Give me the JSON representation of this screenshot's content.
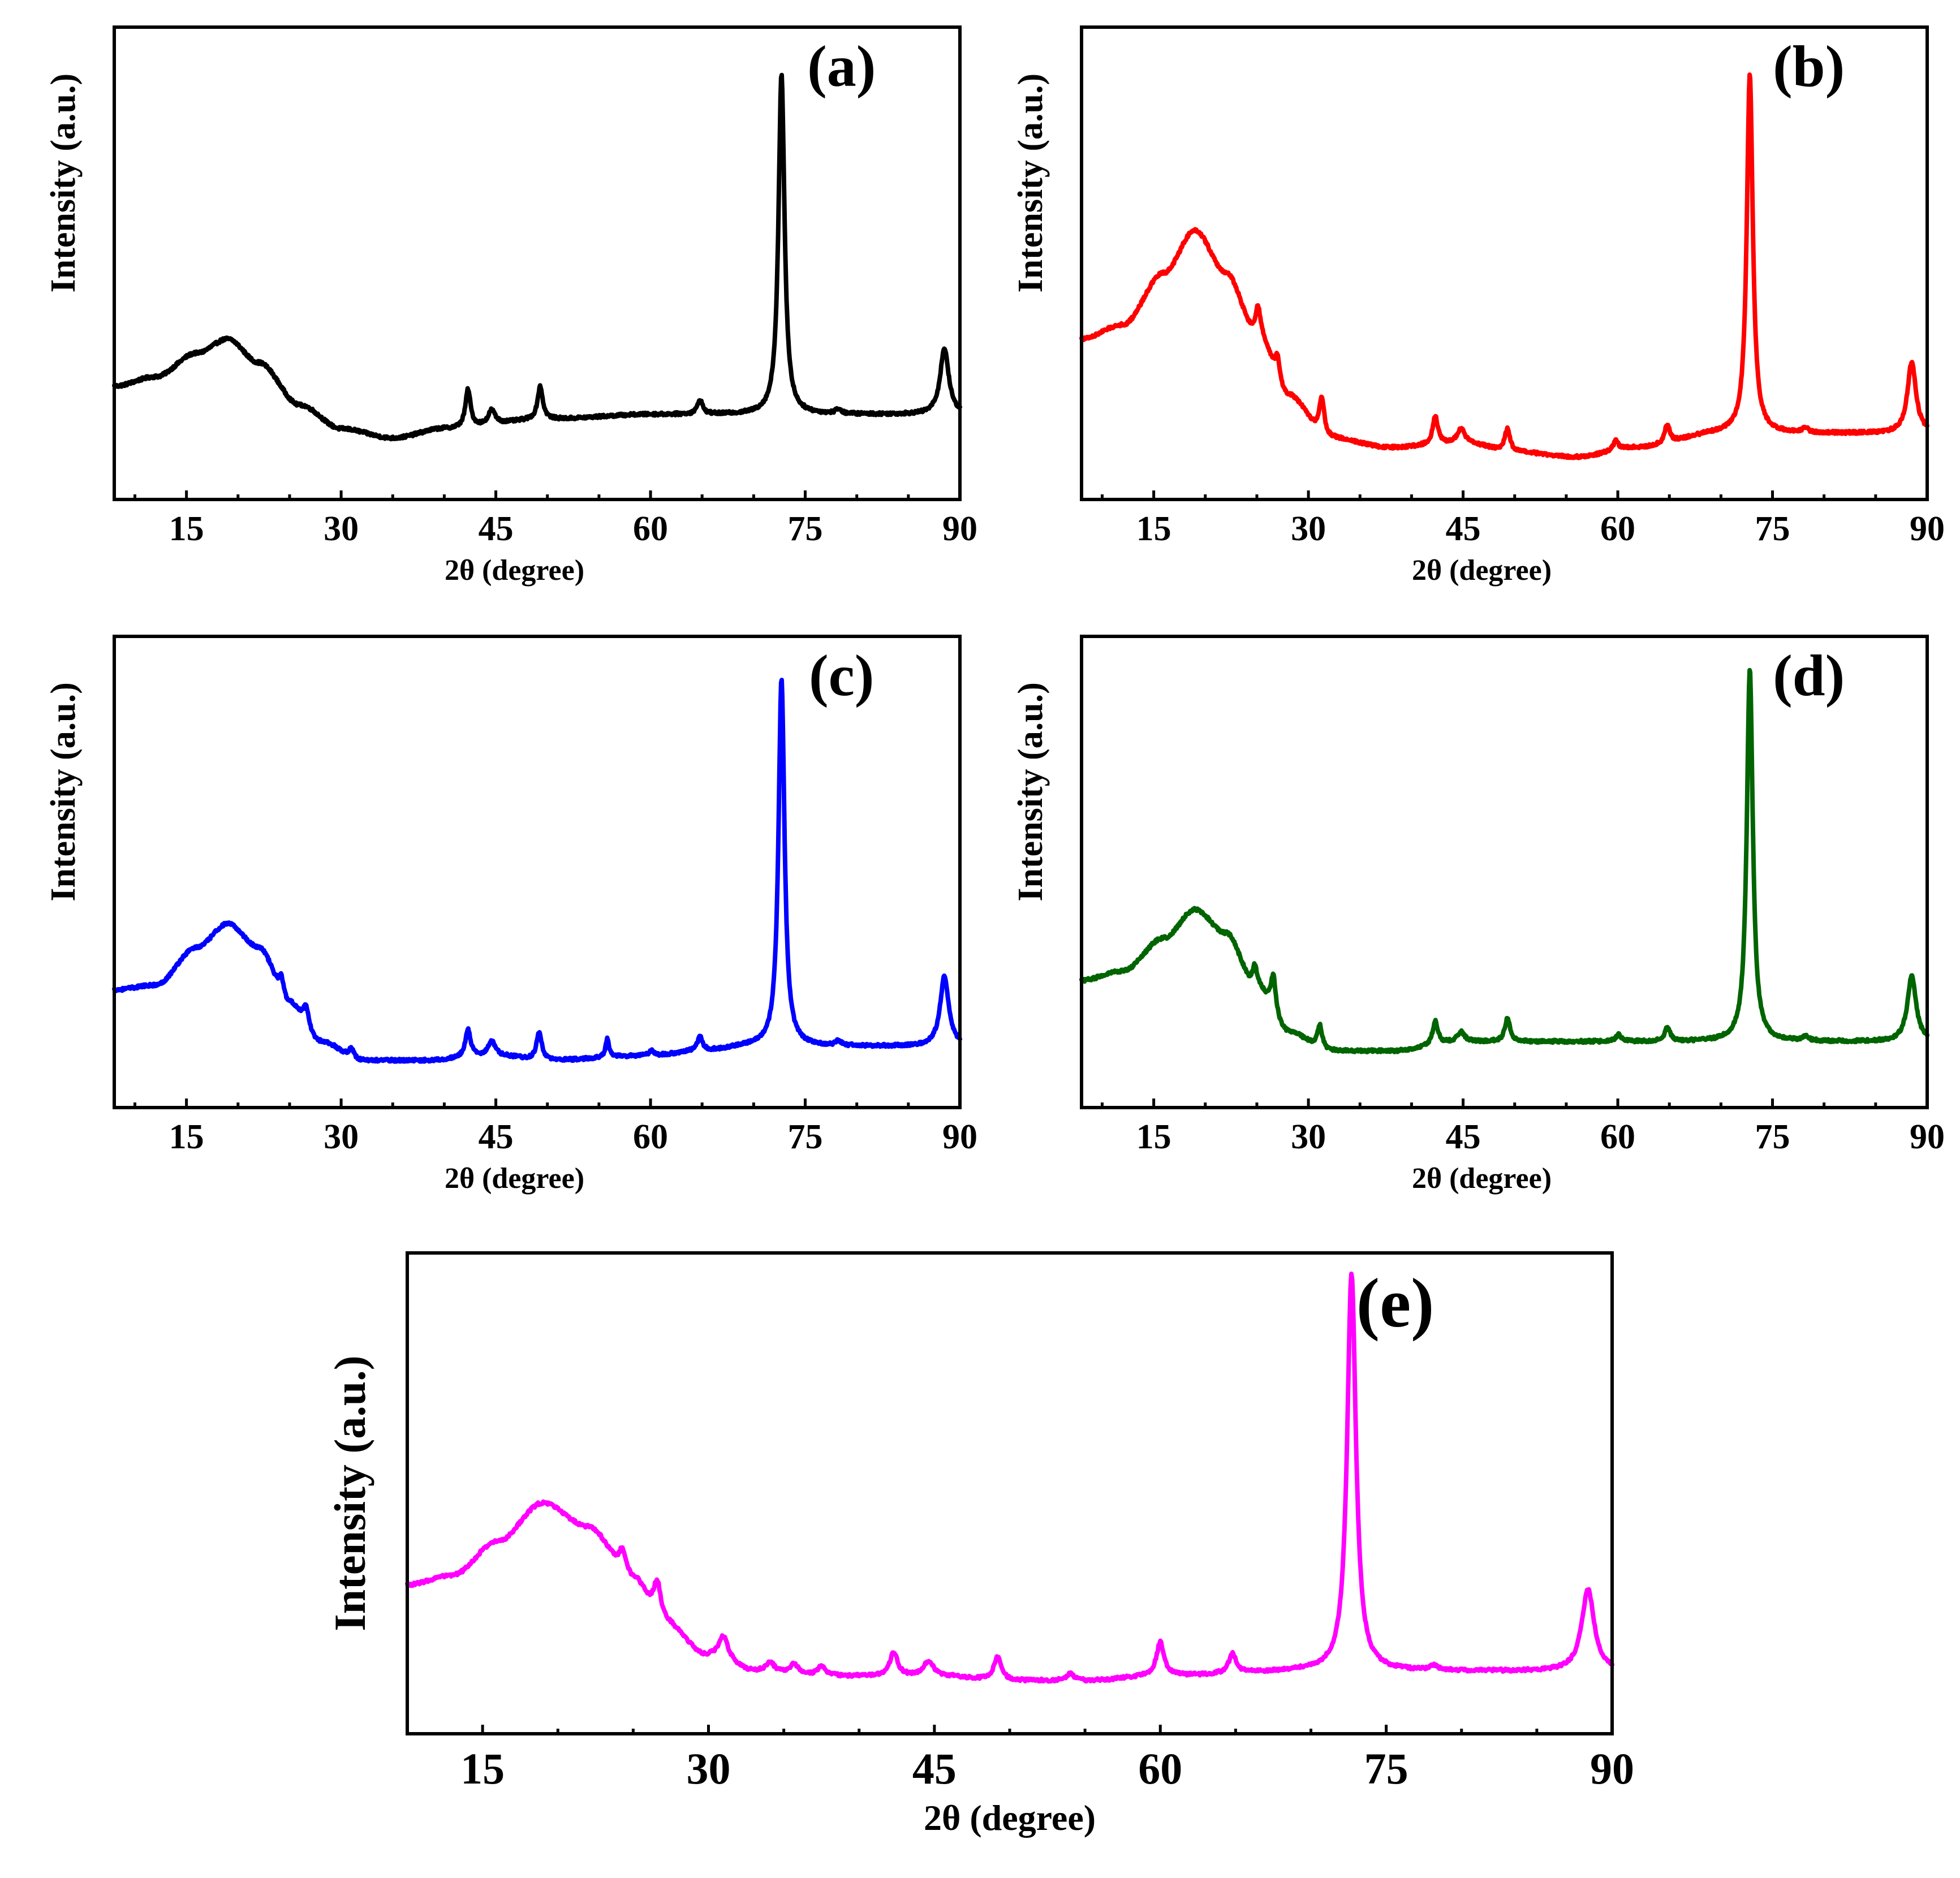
{
  "chart_data": [
    {
      "type": "line",
      "panel_label": "(a)",
      "xlabel": "2θ (degree)",
      "ylabel": "Intensity (a.u.)",
      "xlim": [
        8,
        90
      ],
      "ylim": [
        0,
        100
      ],
      "x_ticks": [
        "15",
        "30",
        "45",
        "60",
        "75",
        "90"
      ],
      "color": "#000000",
      "baseline": [
        [
          8,
          24
        ],
        [
          12,
          26
        ],
        [
          16,
          31
        ],
        [
          19,
          34
        ],
        [
          22,
          29
        ],
        [
          26,
          20
        ],
        [
          30,
          15
        ],
        [
          35,
          13
        ],
        [
          40,
          15
        ],
        [
          50,
          17
        ],
        [
          60,
          18
        ],
        [
          70,
          18
        ],
        [
          90,
          18
        ]
      ],
      "peaks": [
        [
          42.3,
          8,
          0.3
        ],
        [
          44.6,
          3,
          0.4
        ],
        [
          49.3,
          7,
          0.3
        ],
        [
          64.8,
          3,
          0.3
        ],
        [
          72.7,
          72,
          0.35
        ],
        [
          78.2,
          1,
          0.3
        ],
        [
          88.5,
          14,
          0.5
        ]
      ]
    },
    {
      "type": "line",
      "panel_label": "(b)",
      "xlabel": "2θ (degree)",
      "ylabel": "Intensity (a.u.)",
      "xlim": [
        8,
        90
      ],
      "ylim": [
        0,
        100
      ],
      "x_ticks": [
        "15",
        "30",
        "45",
        "60",
        "75",
        "90"
      ],
      "color": "#ff0000",
      "baseline": [
        [
          8,
          34
        ],
        [
          12,
          37
        ],
        [
          16,
          48
        ],
        [
          19,
          57
        ],
        [
          22,
          48
        ],
        [
          25,
          35
        ],
        [
          28,
          22
        ],
        [
          32,
          13
        ],
        [
          38,
          11
        ],
        [
          45,
          12
        ],
        [
          50,
          10
        ],
        [
          56,
          9
        ],
        [
          62,
          11
        ],
        [
          70,
          14
        ],
        [
          90,
          14
        ]
      ],
      "peaks": [
        [
          25.1,
          6,
          0.3
        ],
        [
          27,
          5,
          0.3
        ],
        [
          31.3,
          8,
          0.3
        ],
        [
          42.3,
          6,
          0.3
        ],
        [
          44.8,
          3,
          0.4
        ],
        [
          49.3,
          5,
          0.3
        ],
        [
          59.8,
          2,
          0.3
        ],
        [
          64.8,
          4,
          0.3
        ],
        [
          72.8,
          76,
          0.35
        ],
        [
          78.2,
          1,
          0.3
        ],
        [
          88.5,
          15,
          0.5
        ]
      ]
    },
    {
      "type": "line",
      "panel_label": "(c)",
      "xlabel": "2θ (degree)",
      "ylabel": "Intensity (a.u.)",
      "xlim": [
        8,
        90
      ],
      "ylim": [
        0,
        100
      ],
      "x_ticks": [
        "15",
        "30",
        "45",
        "60",
        "75",
        "90"
      ],
      "color": "#0000ff",
      "baseline": [
        [
          8,
          25
        ],
        [
          12,
          26
        ],
        [
          16,
          34
        ],
        [
          19,
          39
        ],
        [
          22,
          34
        ],
        [
          25,
          22
        ],
        [
          28,
          14
        ],
        [
          32,
          10
        ],
        [
          38,
          10
        ],
        [
          45,
          11
        ],
        [
          50,
          10
        ],
        [
          60,
          11
        ],
        [
          65,
          12
        ],
        [
          70,
          13
        ],
        [
          90,
          13
        ]
      ],
      "peaks": [
        [
          24.2,
          4,
          0.3
        ],
        [
          26.6,
          4,
          0.3
        ],
        [
          31,
          2,
          0.3
        ],
        [
          42.3,
          6,
          0.3
        ],
        [
          44.6,
          3,
          0.4
        ],
        [
          49.2,
          6,
          0.3
        ],
        [
          55.8,
          4,
          0.2
        ],
        [
          60.1,
          1,
          0.3
        ],
        [
          64.8,
          3,
          0.3
        ],
        [
          72.7,
          78,
          0.35
        ],
        [
          78.2,
          1,
          0.3
        ],
        [
          88.5,
          15,
          0.5
        ]
      ]
    },
    {
      "type": "line",
      "panel_label": "(d)",
      "xlabel": "2θ (degree)",
      "ylabel": "Intensity (a.u.)",
      "xlim": [
        8,
        90
      ],
      "ylim": [
        0,
        100
      ],
      "x_ticks": [
        "15",
        "30",
        "45",
        "60",
        "75",
        "90"
      ],
      "color": "#006400",
      "baseline": [
        [
          8,
          27
        ],
        [
          12,
          29
        ],
        [
          16,
          36
        ],
        [
          19,
          42
        ],
        [
          22,
          37
        ],
        [
          25,
          25
        ],
        [
          28,
          16
        ],
        [
          32,
          12
        ],
        [
          38,
          12
        ],
        [
          45,
          14
        ],
        [
          50,
          14
        ],
        [
          60,
          14
        ],
        [
          70,
          14
        ],
        [
          90,
          14
        ]
      ],
      "peaks": [
        [
          24.8,
          5,
          0.3
        ],
        [
          26.6,
          8,
          0.3
        ],
        [
          31.1,
          5,
          0.3
        ],
        [
          42.3,
          5,
          0.3
        ],
        [
          44.8,
          2,
          0.4
        ],
        [
          49.3,
          5,
          0.3
        ],
        [
          60.1,
          1.5,
          0.3
        ],
        [
          64.8,
          3,
          0.3
        ],
        [
          72.8,
          79,
          0.35
        ],
        [
          78.2,
          1,
          0.3
        ],
        [
          88.5,
          14,
          0.5
        ]
      ]
    },
    {
      "type": "line",
      "panel_label": "(e)",
      "xlabel": "2θ (degree)",
      "ylabel": "Intensity (a.u.)",
      "xlim": [
        10,
        90
      ],
      "ylim": [
        0,
        100
      ],
      "x_ticks": [
        "15",
        "30",
        "45",
        "60",
        "75",
        "90"
      ],
      "color": "#ff00ff",
      "baseline": [
        [
          10,
          31
        ],
        [
          13,
          33
        ],
        [
          16,
          40
        ],
        [
          19,
          48
        ],
        [
          22,
          43
        ],
        [
          25,
          32
        ],
        [
          27,
          23
        ],
        [
          30,
          16
        ],
        [
          33,
          13
        ],
        [
          38,
          12
        ],
        [
          45,
          12
        ],
        [
          50,
          11
        ],
        [
          55,
          11
        ],
        [
          60,
          12
        ],
        [
          70,
          13
        ],
        [
          90,
          13
        ]
      ],
      "peaks": [
        [
          24.3,
          5,
          0.3
        ],
        [
          26.6,
          8,
          0.3
        ],
        [
          31,
          5,
          0.4
        ],
        [
          34.1,
          2,
          0.3
        ],
        [
          35.7,
          2,
          0.3
        ],
        [
          37.5,
          2,
          0.3
        ],
        [
          42.3,
          5,
          0.3
        ],
        [
          44.6,
          3,
          0.4
        ],
        [
          49.2,
          5,
          0.3
        ],
        [
          54,
          1.5,
          0.3
        ],
        [
          60,
          7,
          0.3
        ],
        [
          64.8,
          4,
          0.3
        ],
        [
          72.7,
          83,
          0.35
        ],
        [
          78.2,
          1,
          0.3
        ],
        [
          88.4,
          17,
          0.5
        ]
      ]
    }
  ]
}
